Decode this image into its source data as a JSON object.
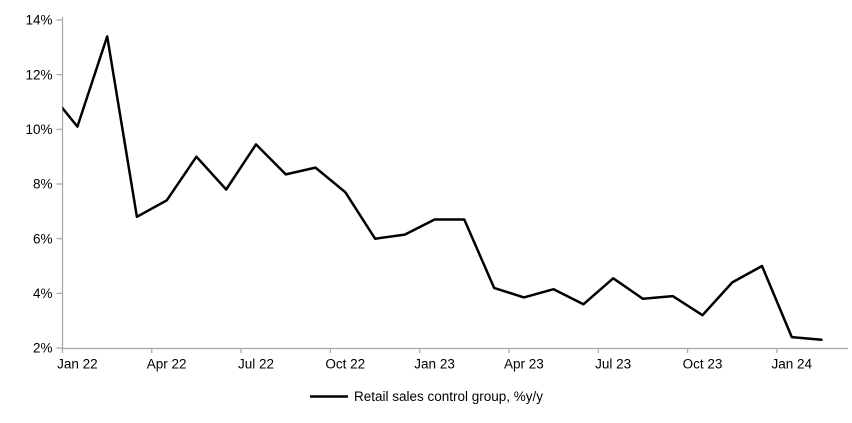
{
  "chart_data": {
    "type": "line",
    "title": "",
    "legend": "Retail sales control group, %y/y",
    "legend_position": "bottom-center",
    "grid": "off",
    "x": [
      "Dec 21",
      "Jan 22",
      "Feb 22",
      "Mar 22",
      "Apr 22",
      "May 22",
      "Jun 22",
      "Jul 22",
      "Aug 22",
      "Sep 22",
      "Oct 22",
      "Nov 22",
      "Dec 22",
      "Jan 23",
      "Feb 23",
      "Mar 23",
      "Apr 23",
      "May 23",
      "Jun 23",
      "Jul 23",
      "Aug 23",
      "Sep 23",
      "Oct 23",
      "Nov 23",
      "Dec 23",
      "Jan 24",
      "Feb 24"
    ],
    "values": [
      11.45,
      10.1,
      13.4,
      6.8,
      7.4,
      9.0,
      7.8,
      9.45,
      8.35,
      8.6,
      7.7,
      6.0,
      6.15,
      6.7,
      6.7,
      4.2,
      3.85,
      4.15,
      3.6,
      4.55,
      3.8,
      3.9,
      3.2,
      4.4,
      5.0,
      2.4,
      2.3
    ],
    "first_point_offplot": true,
    "ylim": [
      2,
      14
    ],
    "y_tick_values": [
      14,
      12,
      10,
      8,
      6,
      4,
      2
    ],
    "y_tick_labels": [
      "14%",
      "12%",
      "10%",
      "8%",
      "6%",
      "4%",
      "2%"
    ],
    "x_tick_labels": [
      "Jan 22",
      "Apr 22",
      "Jul 22",
      "Oct 22",
      "Jan 23",
      "Apr 23",
      "Jul 23",
      "Oct 23",
      "Jan 24"
    ],
    "x_tick_every_months": 3,
    "line_color": "#000000",
    "axis_color": "#a6a6a6",
    "text_color": "#000000"
  }
}
